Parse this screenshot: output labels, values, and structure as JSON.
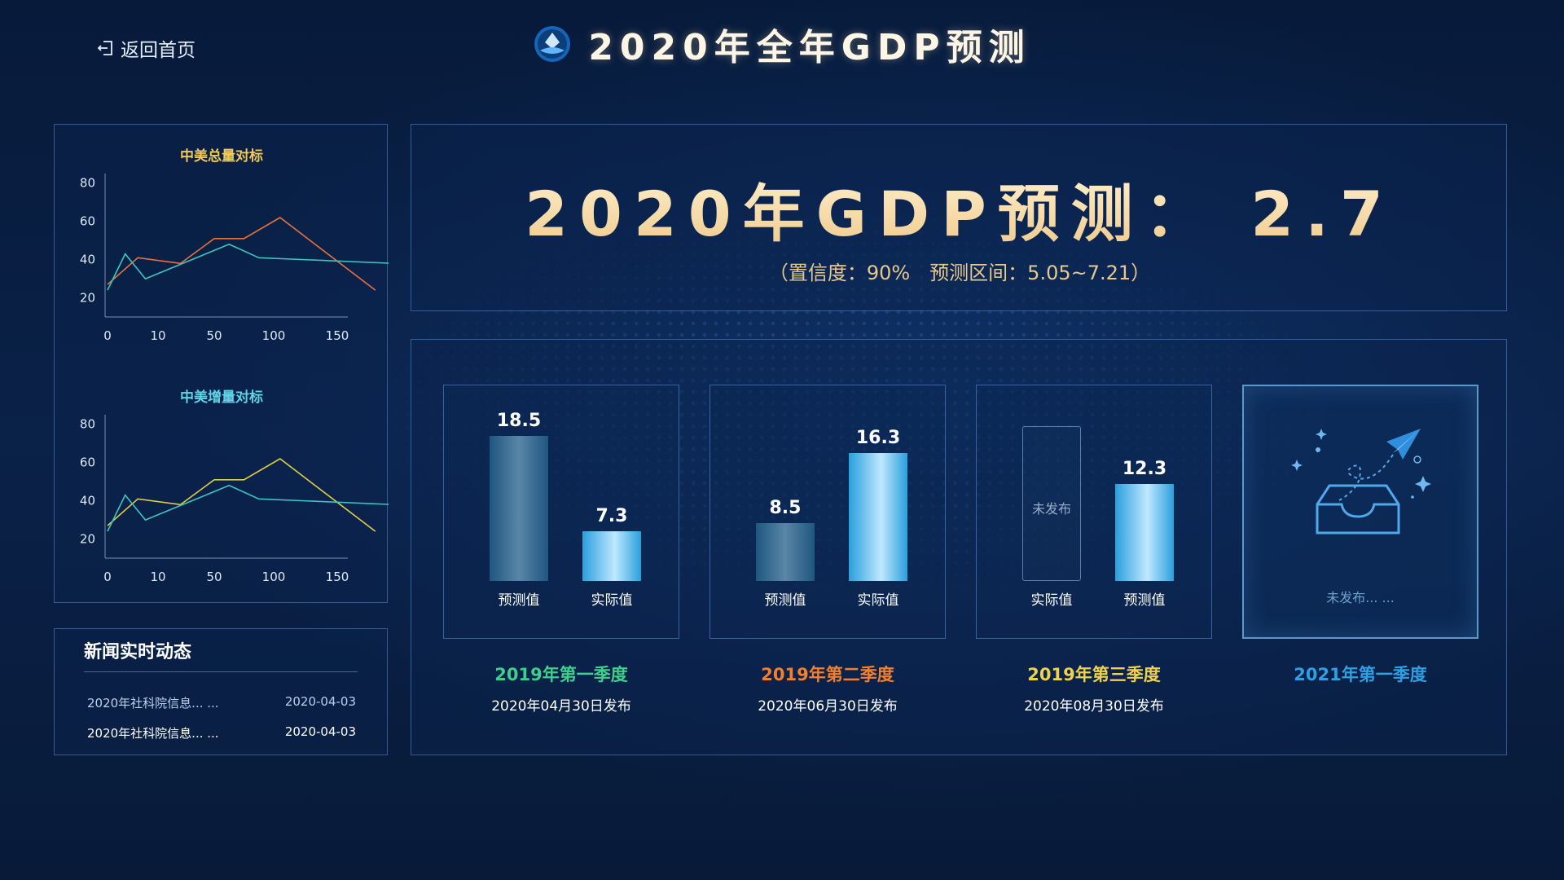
{
  "header": {
    "title": "2020年全年GDP预测",
    "back_label": "返回首页"
  },
  "charts": [
    {
      "title": "中美总量对标",
      "title_color": "#f1c956",
      "y_ticks": [
        "80",
        "60",
        "40",
        "20"
      ],
      "x_ticks": [
        "0",
        "10",
        "50",
        "100",
        "150"
      ],
      "chart_data": {
        "type": "line",
        "x": [
          "0",
          "10",
          "50",
          "100",
          "150"
        ],
        "ylim": [
          10,
          85
        ],
        "series": [
          {
            "color": "#e8733a",
            "values": [
              [
                0,
                27
              ],
              [
                0.6,
                41
              ],
              [
                1.4,
                38
              ],
              [
                2,
                51
              ],
              [
                2.5,
                51
              ],
              [
                3.1,
                62
              ],
              [
                4.6,
                24
              ]
            ]
          },
          {
            "color": "#3fc5c0",
            "values": [
              [
                0,
                24
              ],
              [
                0.35,
                43
              ],
              [
                0.75,
                30
              ],
              [
                2.25,
                48
              ],
              [
                2.75,
                41
              ],
              [
                4.9,
                38
              ]
            ]
          }
        ]
      }
    },
    {
      "title": "中美增量对标",
      "title_color": "#5fd3e6",
      "y_ticks": [
        "80",
        "60",
        "40",
        "20"
      ],
      "x_ticks": [
        "0",
        "10",
        "50",
        "100",
        "150"
      ],
      "chart_data": {
        "type": "line",
        "x": [
          "0",
          "10",
          "50",
          "100",
          "150"
        ],
        "ylim": [
          10,
          85
        ],
        "series": [
          {
            "color": "#e0cf45",
            "values": [
              [
                0,
                27
              ],
              [
                0.6,
                41
              ],
              [
                1.4,
                38
              ],
              [
                2,
                51
              ],
              [
                2.5,
                51
              ],
              [
                3.1,
                62
              ],
              [
                4.6,
                24
              ]
            ]
          },
          {
            "color": "#3fc5c0",
            "values": [
              [
                0,
                24
              ],
              [
                0.35,
                43
              ],
              [
                0.75,
                30
              ],
              [
                2.25,
                48
              ],
              [
                2.75,
                41
              ],
              [
                4.9,
                38
              ]
            ]
          }
        ]
      }
    }
  ],
  "news": {
    "title": "新闻实时动态",
    "items": [
      {
        "text": "2020年社科院信息... ...",
        "date": "2020-04-03"
      },
      {
        "text": "2020年社科院信息... ...",
        "date": "2020-04-03"
      }
    ]
  },
  "forecast": {
    "headline": "2020年GDP预测： 2.7",
    "detail": "（置信度：90%　预测区间：5.05~7.21）"
  },
  "quarters": [
    {
      "label": "2019年第一季度",
      "color": "#3ecf8e",
      "date": "2020年04月30日发布",
      "bars": [
        {
          "kind": "pred",
          "label": "预测值",
          "value": 18.5,
          "display": "18.5"
        },
        {
          "kind": "act",
          "label": "实际值",
          "value": 7.3,
          "display": "7.3"
        }
      ]
    },
    {
      "label": "2019年第二季度",
      "color": "#f0802f",
      "date": "2020年06月30日发布",
      "bars": [
        {
          "kind": "pred",
          "label": "预测值",
          "value": 8.5,
          "display": "8.5"
        },
        {
          "kind": "act",
          "label": "实际值",
          "value": 16.3,
          "display": "16.3"
        }
      ]
    },
    {
      "label": "2019年第三季度",
      "color": "#ecd24e",
      "date": "2020年08月30日发布",
      "bars": [
        {
          "kind": "empty",
          "label": "实际值",
          "empty_text": "未发布"
        },
        {
          "kind": "act",
          "label": "预测值",
          "value": 12.3,
          "display": "12.3"
        }
      ]
    },
    {
      "label": "2021年第一季度",
      "color": "#2f9fe3",
      "unpublished": "未发布... ..."
    }
  ]
}
